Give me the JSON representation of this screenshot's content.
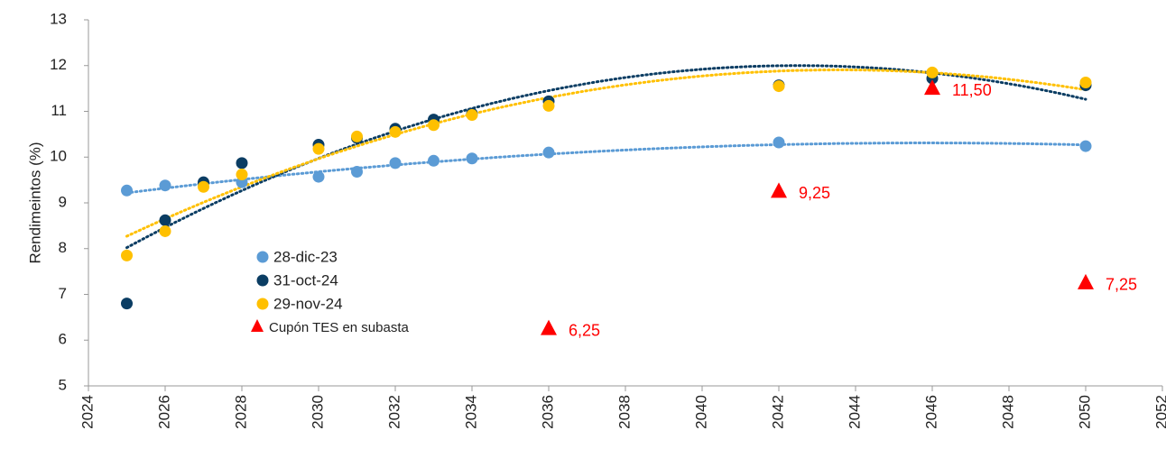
{
  "chart_data": {
    "type": "scatter",
    "y_label": "Rendimeintos (%)",
    "xlim": [
      2024,
      2052
    ],
    "xticks": [
      2024,
      2026,
      2028,
      2030,
      2032,
      2034,
      2036,
      2038,
      2040,
      2042,
      2044,
      2046,
      2048,
      2050,
      2052
    ],
    "ylim": [
      5,
      13
    ],
    "yticks": [
      5,
      6,
      7,
      8,
      9,
      10,
      11,
      12,
      13
    ],
    "grid": false,
    "legend": "inside-left",
    "trendline_order": 2,
    "series": [
      {
        "name": "28-dic-23",
        "color": "#5b9bd5",
        "marker": "circle",
        "trendline": true,
        "x": [
          2025,
          2026,
          2028,
          2030,
          2031,
          2032,
          2033,
          2034,
          2036,
          2042,
          2050
        ],
        "values": [
          9.27,
          9.38,
          9.45,
          9.57,
          9.68,
          9.87,
          9.92,
          9.97,
          10.1,
          10.32,
          10.24
        ]
      },
      {
        "name": "31-oct-24",
        "color": "#0b3d63",
        "marker": "circle",
        "trendline": true,
        "x": [
          2025,
          2026,
          2027,
          2028,
          2030,
          2031,
          2032,
          2033,
          2034,
          2036,
          2042,
          2046,
          2050
        ],
        "values": [
          6.8,
          8.62,
          9.45,
          9.87,
          10.27,
          10.42,
          10.62,
          10.82,
          10.95,
          11.22,
          11.57,
          11.72,
          11.57
        ]
      },
      {
        "name": "29-nov-24",
        "color": "#ffc000",
        "marker": "circle",
        "trendline": true,
        "x": [
          2025,
          2026,
          2027,
          2028,
          2030,
          2031,
          2032,
          2033,
          2034,
          2036,
          2042,
          2046,
          2050
        ],
        "values": [
          7.85,
          8.38,
          9.35,
          9.62,
          10.18,
          10.45,
          10.55,
          10.7,
          10.92,
          11.12,
          11.55,
          11.85,
          11.63
        ]
      },
      {
        "name": "Cupón TES en subasta",
        "color": "#ff0000",
        "marker": "triangle",
        "trendline": false,
        "x": [
          2036,
          2042,
          2046,
          2050
        ],
        "values": [
          6.25,
          9.25,
          11.5,
          7.25
        ],
        "value_labels": [
          "6,25",
          "9,25",
          "11,50",
          "7,25"
        ]
      }
    ]
  }
}
